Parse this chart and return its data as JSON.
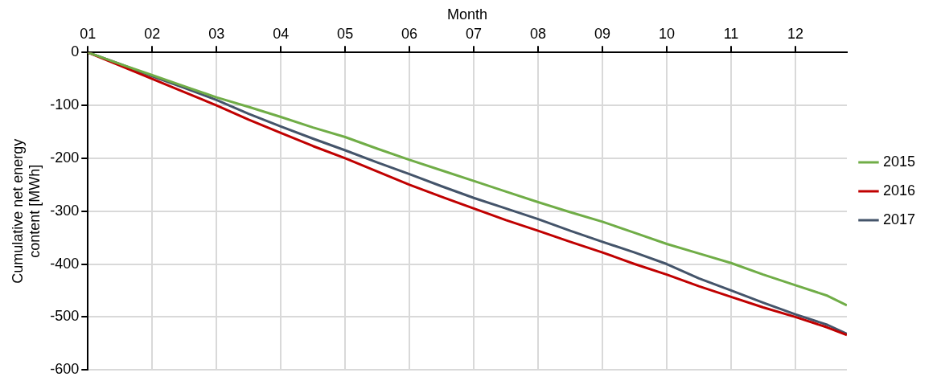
{
  "chart_data": {
    "type": "line",
    "xlabel": "Month",
    "ylabel": "Cumulative net energy content [MWh]",
    "x": [
      1,
      1.5,
      2,
      2.5,
      3,
      3.5,
      4,
      4.5,
      5,
      5.5,
      6,
      6.5,
      7,
      7.5,
      8,
      8.5,
      9,
      9.5,
      10,
      10.5,
      11,
      11.5,
      12,
      12.5,
      12.8
    ],
    "series": [
      {
        "name": "2015",
        "color": "#70ad47",
        "values": [
          0,
          -22,
          -43,
          -64,
          -85,
          -103,
          -122,
          -142,
          -160,
          -182,
          -203,
          -223,
          -243,
          -263,
          -283,
          -302,
          -320,
          -341,
          -362,
          -380,
          -398,
          -420,
          -440,
          -460,
          -478
        ]
      },
      {
        "name": "2016",
        "color": "#c00000",
        "values": [
          0,
          -25,
          -50,
          -75,
          -100,
          -127,
          -152,
          -177,
          -200,
          -225,
          -250,
          -273,
          -295,
          -317,
          -337,
          -358,
          -378,
          -400,
          -420,
          -442,
          -462,
          -482,
          -500,
          -520,
          -534
        ]
      },
      {
        "name": "2017",
        "color": "#44546a",
        "values": [
          0,
          -22,
          -45,
          -67,
          -90,
          -116,
          -140,
          -163,
          -185,
          -208,
          -230,
          -253,
          -275,
          -295,
          -315,
          -337,
          -358,
          -378,
          -400,
          -427,
          -450,
          -473,
          -495,
          -515,
          -532
        ]
      }
    ],
    "xlim": [
      1,
      12.8
    ],
    "xticks": [
      {
        "value": 1,
        "label": "01"
      },
      {
        "value": 2,
        "label": "02"
      },
      {
        "value": 3,
        "label": "03"
      },
      {
        "value": 4,
        "label": "04"
      },
      {
        "value": 5,
        "label": "05"
      },
      {
        "value": 6,
        "label": "06"
      },
      {
        "value": 7,
        "label": "07"
      },
      {
        "value": 8,
        "label": "08"
      },
      {
        "value": 9,
        "label": "09"
      },
      {
        "value": 10,
        "label": "10"
      },
      {
        "value": 11,
        "label": "11"
      },
      {
        "value": 12,
        "label": "12"
      }
    ],
    "ylim": [
      -600,
      0
    ],
    "yticks": [
      -600,
      -500,
      -400,
      -300,
      -200,
      -100,
      0
    ],
    "grid": true,
    "legend": "right",
    "marker": "none",
    "line_style": "solid"
  }
}
